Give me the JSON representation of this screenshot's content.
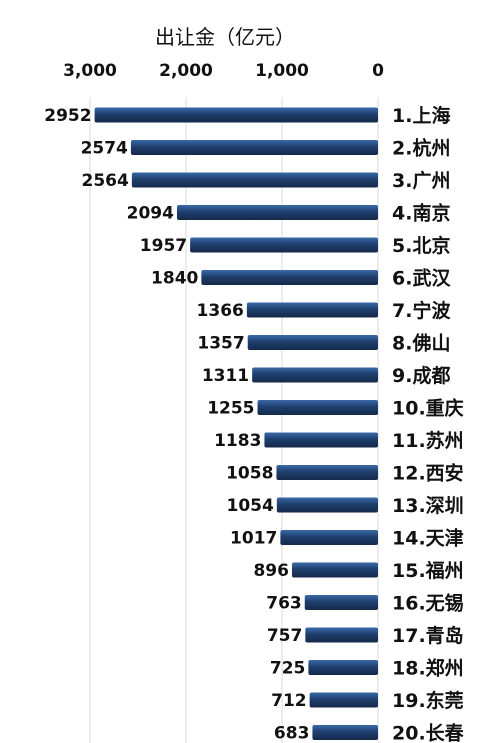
{
  "chart_data": {
    "type": "bar",
    "orientation": "horizontal",
    "x_direction": "reversed",
    "title": "出让金（亿元）",
    "xlabel": "出让金（亿元）",
    "ylabel": "",
    "xlim": [
      0,
      3000
    ],
    "x_ticks": [
      3000,
      2000,
      1000,
      0
    ],
    "x_tick_labels": [
      "3,000",
      "2,000",
      "1,000",
      "0"
    ],
    "x_axis_position": "top",
    "grid": true,
    "legend": "none",
    "colors": {
      "bar": "#1f3f6e",
      "bar_light": "#3a6aa8",
      "gridline": "#d8d8d8"
    },
    "categories": [
      "1.上海",
      "2.杭州",
      "3.广州",
      "4.南京",
      "5.北京",
      "6.武汉",
      "7.宁波",
      "8.佛山",
      "9.成都",
      "10.重庆",
      "11.苏州",
      "12.西安",
      "13.深圳",
      "14.天津",
      "15.福州",
      "16.无锡",
      "17.青岛",
      "18.郑州",
      "19.东莞",
      "20.长春"
    ],
    "values": [
      2952,
      2574,
      2564,
      2094,
      1957,
      1840,
      1366,
      1357,
      1311,
      1255,
      1183,
      1058,
      1054,
      1017,
      896,
      763,
      757,
      725,
      712,
      683
    ],
    "data_labels": [
      "2952",
      "2574",
      "2564",
      "2094",
      "1957",
      "1840",
      "1366",
      "1357",
      "1311",
      "1255",
      "1183",
      "1058",
      "1054",
      "1017",
      "896",
      "763",
      "757",
      "725",
      "712",
      "683"
    ]
  }
}
